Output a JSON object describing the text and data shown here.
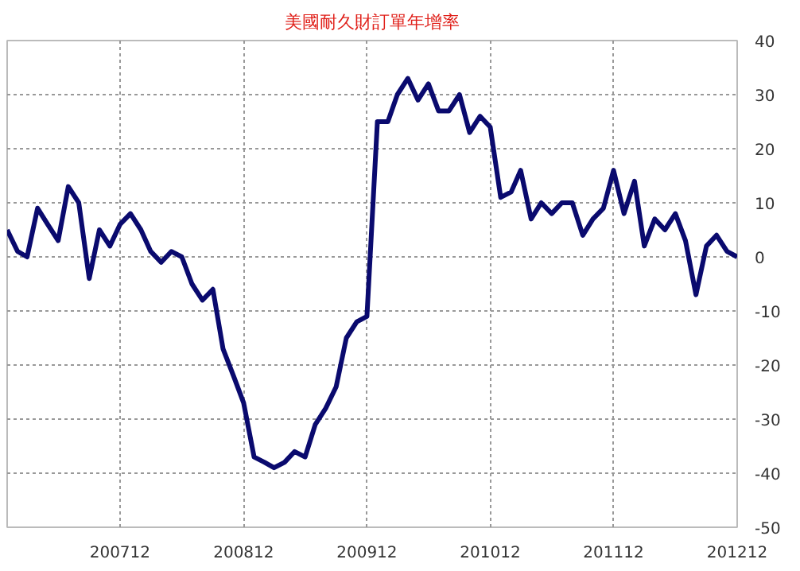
{
  "chart_data": {
    "type": "line",
    "title": "美國耐久財訂單年增率",
    "x": [
      "2007-01",
      "2007-02",
      "2007-03",
      "2007-04",
      "2007-05",
      "2007-06",
      "2007-07",
      "2007-08",
      "2007-09",
      "2007-10",
      "2007-11",
      "2007-12",
      "2008-01",
      "2008-02",
      "2008-03",
      "2008-04",
      "2008-05",
      "2008-06",
      "2008-07",
      "2008-08",
      "2008-09",
      "2008-10",
      "2008-11",
      "2008-12",
      "2009-01",
      "2009-02",
      "2009-03",
      "2009-04",
      "2009-05",
      "2009-06",
      "2009-07",
      "2009-08",
      "2009-09",
      "2009-10",
      "2009-11",
      "2009-12",
      "2010-01",
      "2010-02",
      "2010-03",
      "2010-04",
      "2010-05",
      "2010-06",
      "2010-07",
      "2010-08",
      "2010-09",
      "2010-10",
      "2010-11",
      "2010-12",
      "2011-01",
      "2011-02",
      "2011-03",
      "2011-04",
      "2011-05",
      "2011-06",
      "2011-07",
      "2011-08",
      "2011-09",
      "2011-10",
      "2011-11",
      "2011-12",
      "2012-01",
      "2012-02",
      "2012-03",
      "2012-04",
      "2012-05",
      "2012-06",
      "2012-07",
      "2012-08",
      "2012-09",
      "2012-10",
      "2012-11",
      "2012-12"
    ],
    "series": [
      {
        "color": "#0a0a6e",
        "values": [
          5,
          1,
          0,
          9,
          6,
          3,
          13,
          10,
          -4,
          5,
          2,
          6,
          8,
          5,
          1,
          -1,
          1,
          0,
          -5,
          -8,
          -6,
          -17,
          -22,
          -27,
          -37,
          -38,
          -39,
          -38,
          -36,
          -37,
          -31,
          -28,
          -24,
          -15,
          -12,
          -11,
          25,
          25,
          30,
          33,
          29,
          32,
          27,
          27,
          30,
          23,
          26,
          24,
          11,
          12,
          16,
          7,
          10,
          8,
          10,
          10,
          4,
          7,
          9,
          16,
          8,
          14,
          2,
          7,
          5,
          8,
          3,
          -7,
          2,
          4,
          1,
          0
        ]
      }
    ],
    "xlim": [
      "2007-01",
      "2012-12"
    ],
    "xticks": [
      {
        "value": "2007-12",
        "label": "200712"
      },
      {
        "value": "2008-12",
        "label": "200812"
      },
      {
        "value": "2009-12",
        "label": "200912"
      },
      {
        "value": "2010-12",
        "label": "201012"
      },
      {
        "value": "2011-12",
        "label": "201112"
      },
      {
        "value": "2012-12",
        "label": "201212"
      }
    ],
    "ylim": [
      -50,
      40
    ],
    "yticks": [
      -50,
      -40,
      -30,
      -20,
      -10,
      0,
      10,
      20,
      30,
      40
    ],
    "grid": true,
    "line_style": "solid",
    "marker": "none"
  }
}
